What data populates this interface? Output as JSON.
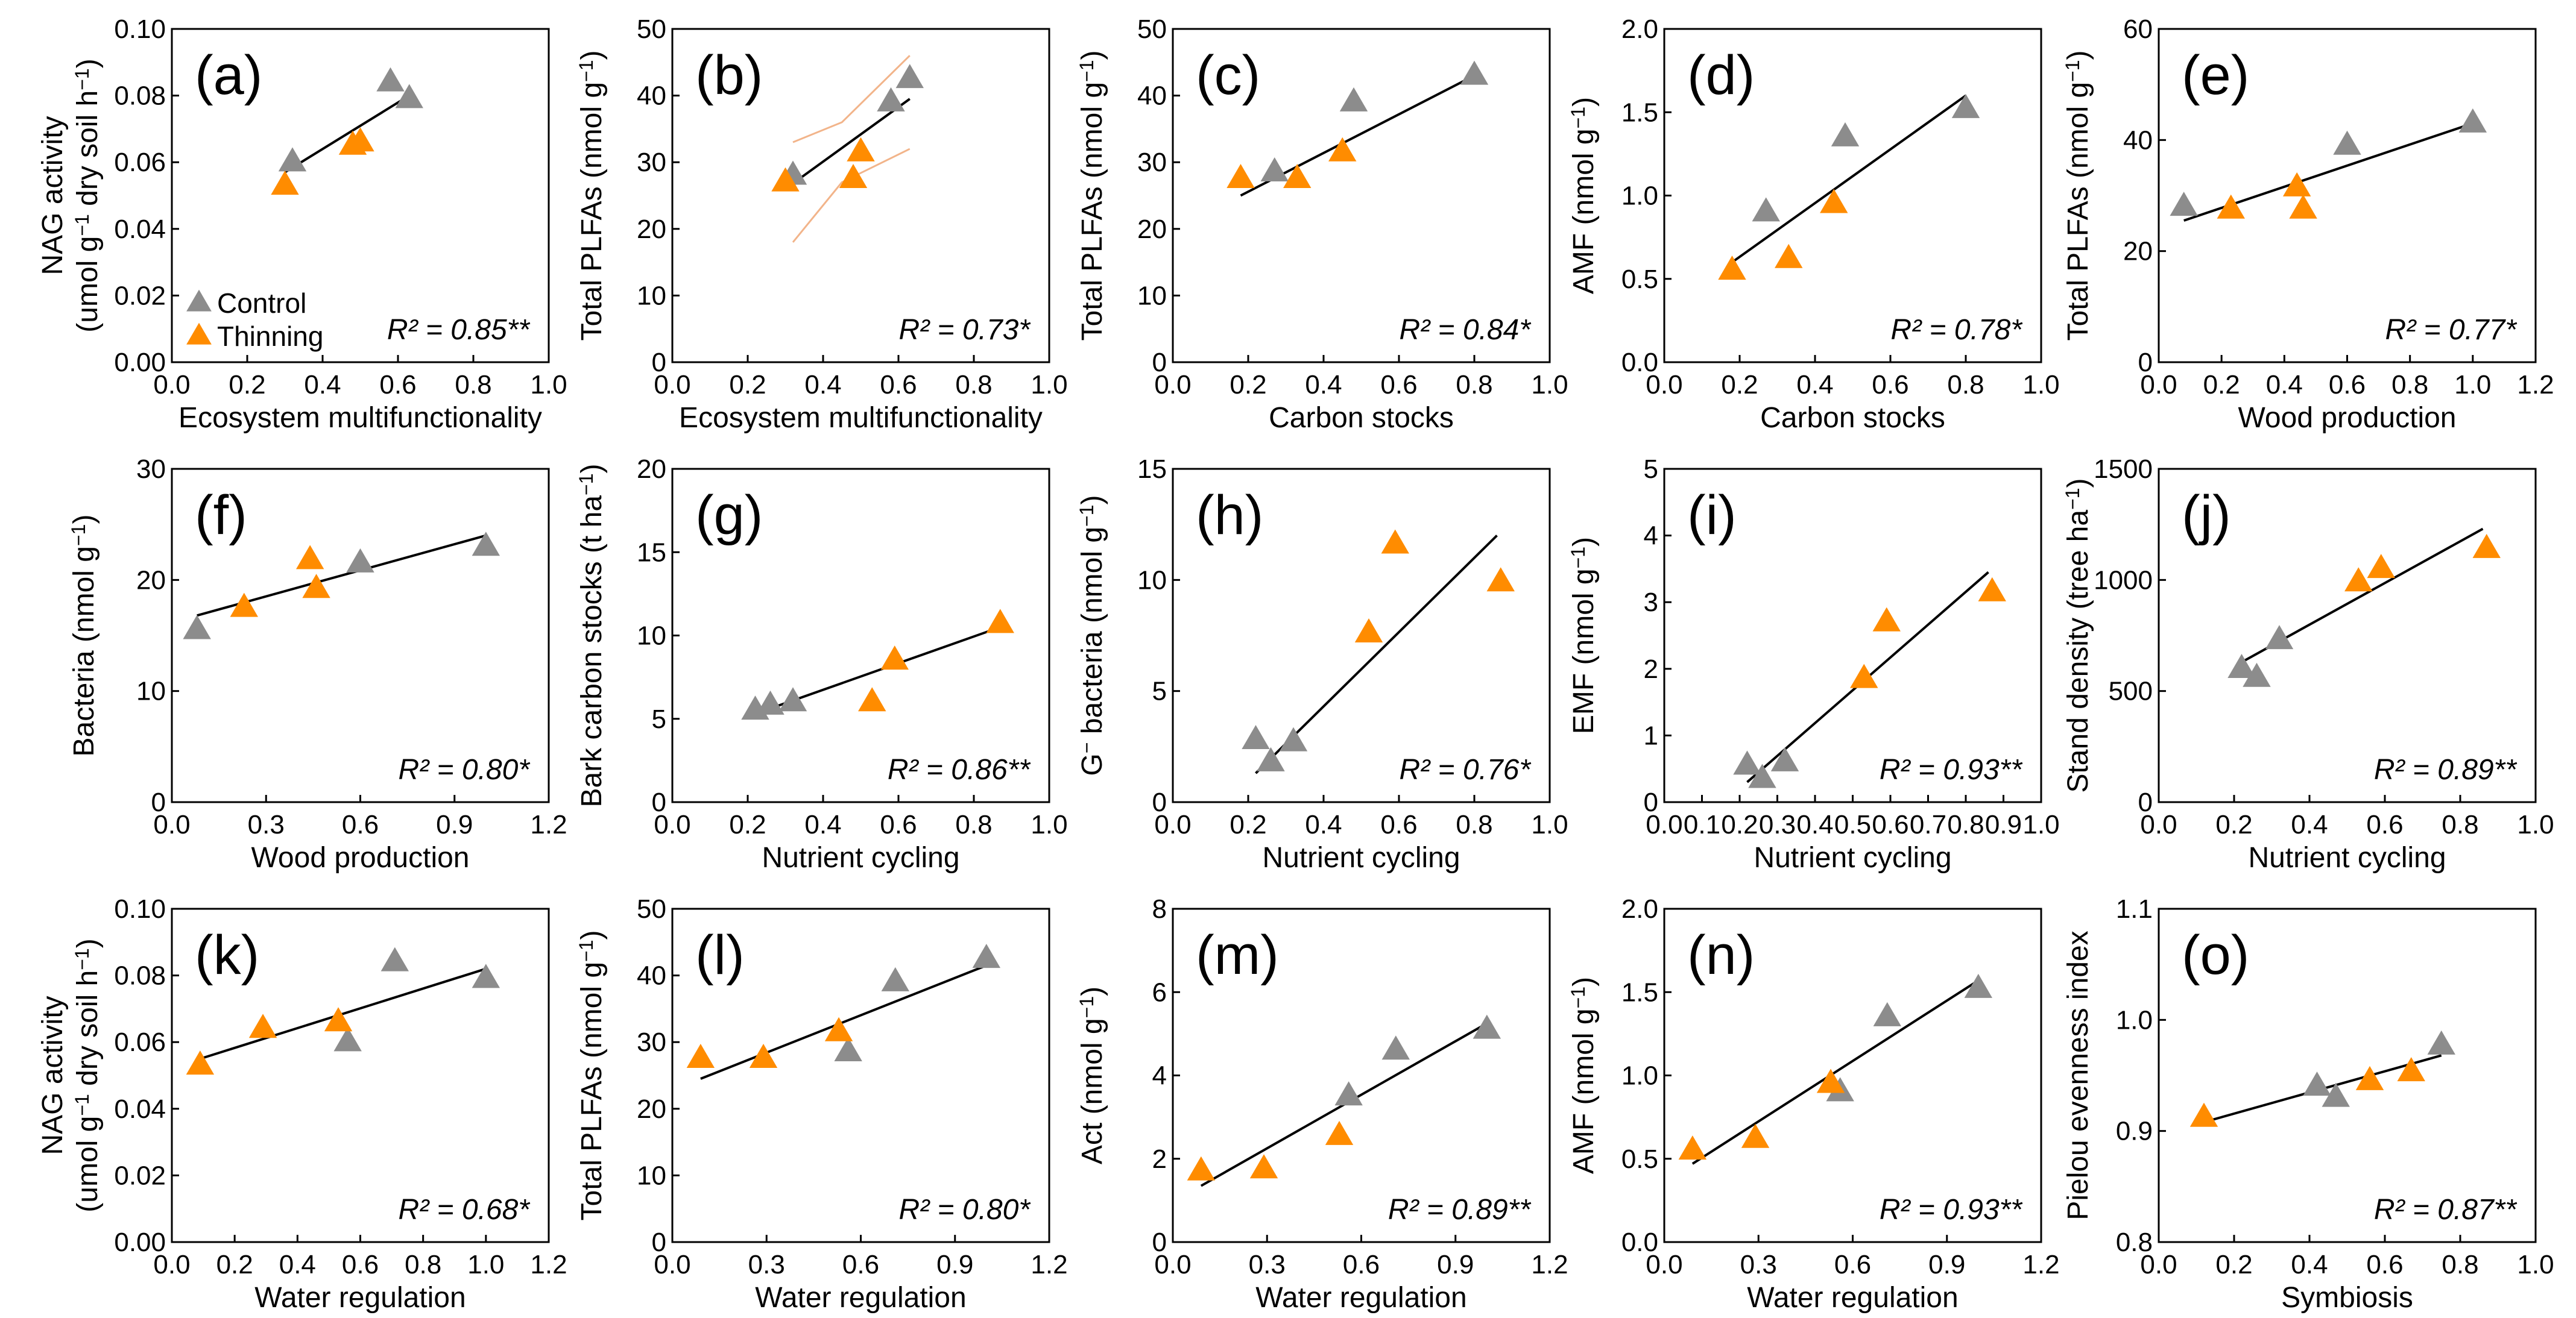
{
  "colors": {
    "control": "#8c8c8c",
    "thinning": "#ff8c00",
    "line": "#000000",
    "ci": "#f2b48a"
  },
  "legend": {
    "control": "Control",
    "thinning": "Thinning"
  },
  "chart_data": [
    {
      "type": "scatter",
      "panel": "(a)",
      "xlabel": "Ecosystem multifunctionality",
      "ylabel": "NAG activity|(umol g-1 dry soil h-1)",
      "xlim": [
        0,
        1.0
      ],
      "ylim": [
        0,
        0.1
      ],
      "xticks": [
        "0.0",
        "0.2",
        "0.4",
        "0.6",
        "0.8",
        "1.0"
      ],
      "yticks": [
        "0.00",
        "0.02",
        "0.04",
        "0.06",
        "0.08",
        "0.10"
      ],
      "series": [
        {
          "name": "Control",
          "x": [
            0.32,
            0.58,
            0.63
          ],
          "y": [
            0.06,
            0.084,
            0.079
          ]
        },
        {
          "name": "Thinning",
          "x": [
            0.3,
            0.48,
            0.5
          ],
          "y": [
            0.053,
            0.065,
            0.066
          ]
        }
      ],
      "fit": [
        [
          0.3,
          0.057
        ],
        [
          0.63,
          0.08
        ]
      ],
      "r2": "R² = 0.85**",
      "legend_shown": true
    },
    {
      "type": "scatter",
      "panel": "(b)",
      "xlabel": "Ecosystem multifunctionality",
      "ylabel": "Total PLFAs (nmol g-1)",
      "xlim": [
        0,
        1.0
      ],
      "ylim": [
        0,
        50
      ],
      "xticks": [
        "0.0",
        "0.2",
        "0.4",
        "0.6",
        "0.8",
        "1.0"
      ],
      "yticks": [
        "0",
        "10",
        "20",
        "30",
        "40",
        "50"
      ],
      "series": [
        {
          "name": "Control",
          "x": [
            0.32,
            0.58,
            0.63
          ],
          "y": [
            28,
            39,
            42.5
          ]
        },
        {
          "name": "Thinning",
          "x": [
            0.3,
            0.48,
            0.5
          ],
          "y": [
            27,
            27.5,
            31.5
          ]
        }
      ],
      "fit": [
        [
          0.3,
          26
        ],
        [
          0.63,
          39.5
        ]
      ],
      "ci_upper": [
        [
          0.32,
          33
        ],
        [
          0.45,
          36
        ],
        [
          0.63,
          46
        ]
      ],
      "ci_lower": [
        [
          0.32,
          18
        ],
        [
          0.45,
          27
        ],
        [
          0.63,
          32
        ]
      ],
      "r2": "R² = 0.73*"
    },
    {
      "type": "scatter",
      "panel": "(c)",
      "xlabel": "Carbon stocks",
      "ylabel": "Total PLFAs (nmol g-1)",
      "xlim": [
        0,
        1.0
      ],
      "ylim": [
        0,
        50
      ],
      "xticks": [
        "0.0",
        "0.2",
        "0.4",
        "0.6",
        "0.8",
        "1.0"
      ],
      "yticks": [
        "0",
        "10",
        "20",
        "30",
        "40",
        "50"
      ],
      "series": [
        {
          "name": "Control",
          "x": [
            0.27,
            0.48,
            0.8
          ],
          "y": [
            28.5,
            39,
            43
          ]
        },
        {
          "name": "Thinning",
          "x": [
            0.18,
            0.33,
            0.45
          ],
          "y": [
            27.5,
            27.5,
            31.5
          ]
        }
      ],
      "fit": [
        [
          0.18,
          25
        ],
        [
          0.8,
          43
        ]
      ],
      "r2": "R² = 0.84*"
    },
    {
      "type": "scatter",
      "panel": "(d)",
      "xlabel": "Carbon stocks",
      "ylabel": "AMF (nmol g-1)",
      "xlim": [
        0,
        1.0
      ],
      "ylim": [
        0,
        2.0
      ],
      "xticks": [
        "0.0",
        "0.2",
        "0.4",
        "0.6",
        "0.8",
        "1.0"
      ],
      "yticks": [
        "0.0",
        "0.5",
        "1.0",
        "1.5",
        "2.0"
      ],
      "series": [
        {
          "name": "Control",
          "x": [
            0.27,
            0.48,
            0.8
          ],
          "y": [
            0.9,
            1.35,
            1.52
          ]
        },
        {
          "name": "Thinning",
          "x": [
            0.18,
            0.33,
            0.45
          ],
          "y": [
            0.55,
            0.62,
            0.95
          ]
        }
      ],
      "fit": [
        [
          0.18,
          0.6
        ],
        [
          0.8,
          1.6
        ]
      ],
      "r2": "R² = 0.78*"
    },
    {
      "type": "scatter",
      "panel": "(e)",
      "xlabel": "Wood production",
      "ylabel": "Total PLFAs (nmol g-1)",
      "xlim": [
        0,
        1.2
      ],
      "ylim": [
        0,
        60
      ],
      "xticks": [
        "0.0",
        "0.2",
        "0.4",
        "0.6",
        "0.8",
        "1.0",
        "1.2"
      ],
      "yticks": [
        "0",
        "20",
        "40",
        "60"
      ],
      "series": [
        {
          "name": "Control",
          "x": [
            0.08,
            0.6,
            1.0
          ],
          "y": [
            28,
            39,
            43
          ]
        },
        {
          "name": "Thinning",
          "x": [
            0.23,
            0.44,
            0.46
          ],
          "y": [
            27.5,
            31.5,
            27.5
          ]
        }
      ],
      "fit": [
        [
          0.08,
          25.5
        ],
        [
          1.0,
          43
        ]
      ],
      "r2": "R² = 0.77*"
    },
    {
      "type": "scatter",
      "panel": "(f)",
      "xlabel": "Wood production",
      "ylabel": "Bacteria (nmol g-1)",
      "xlim": [
        0,
        1.2
      ],
      "ylim": [
        0,
        30
      ],
      "xticks": [
        "0.0",
        "0.3",
        "0.6",
        "0.9",
        "1.2"
      ],
      "yticks": [
        "0",
        "10",
        "20",
        "30"
      ],
      "series": [
        {
          "name": "Control",
          "x": [
            0.08,
            0.6,
            1.0
          ],
          "y": [
            15.5,
            21.5,
            23
          ]
        },
        {
          "name": "Thinning",
          "x": [
            0.23,
            0.44,
            0.46
          ],
          "y": [
            17.5,
            21.8,
            19.2
          ]
        }
      ],
      "fit": [
        [
          0.08,
          16.8
        ],
        [
          1.0,
          24
        ]
      ],
      "r2": "R² = 0.80*"
    },
    {
      "type": "scatter",
      "panel": "(g)",
      "xlabel": "Nutrient cycling",
      "ylabel": "Bark carbon stocks (t ha-1)",
      "xlim": [
        0,
        1.0
      ],
      "ylim": [
        0,
        20
      ],
      "xticks": [
        "0.0",
        "0.2",
        "0.4",
        "0.6",
        "0.8",
        "1.0"
      ],
      "yticks": [
        "0",
        "5",
        "10",
        "15",
        "20"
      ],
      "series": [
        {
          "name": "Control",
          "x": [
            0.22,
            0.26,
            0.32
          ],
          "y": [
            5.5,
            5.8,
            6.0
          ]
        },
        {
          "name": "Thinning",
          "x": [
            0.53,
            0.59,
            0.87
          ],
          "y": [
            6.0,
            8.5,
            10.7
          ]
        }
      ],
      "fit": [
        [
          0.22,
          5.3
        ],
        [
          0.87,
          10.5
        ]
      ],
      "r2": "R² = 0.86**"
    },
    {
      "type": "scatter",
      "panel": "(h)",
      "xlabel": "Nutrient cycling",
      "ylabel": "G- bacteria (nmol g-1)",
      "xlim": [
        0,
        1.0
      ],
      "ylim": [
        0,
        15
      ],
      "xticks": [
        "0.0",
        "0.2",
        "0.4",
        "0.6",
        "0.8",
        "1.0"
      ],
      "yticks": [
        "0",
        "5",
        "10",
        "15"
      ],
      "series": [
        {
          "name": "Control",
          "x": [
            0.22,
            0.26,
            0.32
          ],
          "y": [
            2.8,
            1.8,
            2.7
          ]
        },
        {
          "name": "Thinning",
          "x": [
            0.52,
            0.59,
            0.87
          ],
          "y": [
            7.6,
            11.6,
            9.9
          ]
        }
      ],
      "fit": [
        [
          0.22,
          1.3
        ],
        [
          0.86,
          12
        ]
      ],
      "r2": "R² = 0.76*"
    },
    {
      "type": "scatter",
      "panel": "(i)",
      "xlabel": "Nutrient cycling",
      "ylabel": "EMF (nmol g-1)",
      "xlim": [
        0,
        1.0
      ],
      "ylim": [
        0,
        5
      ],
      "xticks": [
        "0.0",
        "0.1",
        "0.2",
        "0.3",
        "0.4",
        "0.5",
        "0.6",
        "0.7",
        "0.8",
        "0.9",
        "1.0"
      ],
      "yticks": [
        "0",
        "1",
        "2",
        "3",
        "4",
        "5"
      ],
      "series": [
        {
          "name": "Control",
          "x": [
            0.22,
            0.26,
            0.32
          ],
          "y": [
            0.55,
            0.35,
            0.6
          ]
        },
        {
          "name": "Thinning",
          "x": [
            0.53,
            0.59,
            0.87
          ],
          "y": [
            1.85,
            2.7,
            3.15
          ]
        }
      ],
      "fit": [
        [
          0.22,
          0.3
        ],
        [
          0.86,
          3.45
        ]
      ],
      "r2": "R² = 0.93**"
    },
    {
      "type": "scatter",
      "panel": "(j)",
      "xlabel": "Nutrient cycling",
      "ylabel": "Stand density (tree ha-1)",
      "xlim": [
        0,
        1.0
      ],
      "ylim": [
        0,
        1500
      ],
      "xticks": [
        "0.0",
        "0.2",
        "0.4",
        "0.6",
        "0.8",
        "1.0"
      ],
      "yticks": [
        "0",
        "500",
        "1000",
        "1500"
      ],
      "series": [
        {
          "name": "Control",
          "x": [
            0.22,
            0.26,
            0.32
          ],
          "y": [
            600,
            560,
            730
          ]
        },
        {
          "name": "Thinning",
          "x": [
            0.53,
            0.59,
            0.87
          ],
          "y": [
            990,
            1050,
            1140
          ]
        }
      ],
      "fit": [
        [
          0.22,
          630
        ],
        [
          0.86,
          1230
        ]
      ],
      "r2": "R² = 0.89**"
    },
    {
      "type": "scatter",
      "panel": "(k)",
      "xlabel": "Water regulation",
      "ylabel": "NAG activity|(umol g-1 dry soil h-1)",
      "xlim": [
        0,
        1.2
      ],
      "ylim": [
        0,
        0.1
      ],
      "xticks": [
        "0.0",
        "0.2",
        "0.4",
        "0.6",
        "0.8",
        "1.0",
        "1.2"
      ],
      "yticks": [
        "0.00",
        "0.02",
        "0.04",
        "0.06",
        "0.08",
        "0.10"
      ],
      "series": [
        {
          "name": "Control",
          "x": [
            0.56,
            0.71,
            1.0
          ],
          "y": [
            0.06,
            0.084,
            0.079
          ]
        },
        {
          "name": "Thinning",
          "x": [
            0.09,
            0.29,
            0.53
          ],
          "y": [
            0.053,
            0.064,
            0.066
          ]
        }
      ],
      "fit": [
        [
          0.09,
          0.055
        ],
        [
          1.0,
          0.082
        ]
      ],
      "r2": "R² = 0.68*"
    },
    {
      "type": "scatter",
      "panel": "(l)",
      "xlabel": "Water regulation",
      "ylabel": "Total PLFAs (nmol g-1)",
      "xlim": [
        0,
        1.2
      ],
      "ylim": [
        0,
        50
      ],
      "xticks": [
        "0.0",
        "0.3",
        "0.6",
        "0.9",
        "1.2"
      ],
      "yticks": [
        "0",
        "10",
        "20",
        "30",
        "40",
        "50"
      ],
      "series": [
        {
          "name": "Control",
          "x": [
            0.56,
            0.71,
            1.0
          ],
          "y": [
            28.5,
            39,
            42.5
          ]
        },
        {
          "name": "Thinning",
          "x": [
            0.09,
            0.29,
            0.53
          ],
          "y": [
            27.5,
            27.5,
            31.5
          ]
        }
      ],
      "fit": [
        [
          0.09,
          24.5
        ],
        [
          1.0,
          41.5
        ]
      ],
      "r2": "R² = 0.80*"
    },
    {
      "type": "scatter",
      "panel": "(m)",
      "xlabel": "Water regulation",
      "ylabel": "Act (nmol g-1)",
      "xlim": [
        0,
        1.2
      ],
      "ylim": [
        0,
        8
      ],
      "xticks": [
        "0.0",
        "0.3",
        "0.6",
        "0.9",
        "1.2"
      ],
      "yticks": [
        "0",
        "2",
        "4",
        "6",
        "8"
      ],
      "series": [
        {
          "name": "Control",
          "x": [
            0.56,
            0.71,
            1.0
          ],
          "y": [
            3.5,
            4.6,
            5.1
          ]
        },
        {
          "name": "Thinning",
          "x": [
            0.09,
            0.29,
            0.53
          ],
          "y": [
            1.7,
            1.75,
            2.55
          ]
        }
      ],
      "fit": [
        [
          0.09,
          1.35
        ],
        [
          1.0,
          5.25
        ]
      ],
      "r2": "R² = 0.89**"
    },
    {
      "type": "scatter",
      "panel": "(n)",
      "xlabel": "Water regulation",
      "ylabel": "AMF (nmol g-1)",
      "xlim": [
        0,
        1.2
      ],
      "ylim": [
        0,
        2.0
      ],
      "xticks": [
        "0.0",
        "0.3",
        "0.6",
        "0.9",
        "1.2"
      ],
      "yticks": [
        "0.0",
        "0.5",
        "1.0",
        "1.5",
        "2.0"
      ],
      "series": [
        {
          "name": "Control",
          "x": [
            0.56,
            0.71,
            1.0
          ],
          "y": [
            0.9,
            1.35,
            1.52
          ]
        },
        {
          "name": "Thinning",
          "x": [
            0.09,
            0.29,
            0.53
          ],
          "y": [
            0.55,
            0.62,
            0.95
          ]
        }
      ],
      "fit": [
        [
          0.09,
          0.47
        ],
        [
          1.0,
          1.57
        ]
      ],
      "r2": "R² = 0.93**"
    },
    {
      "type": "scatter",
      "panel": "(o)",
      "xlabel": "Symbiosis",
      "ylabel": "Pielou evenness index",
      "xlim": [
        0,
        1.0
      ],
      "ylim": [
        0.8,
        1.1
      ],
      "xticks": [
        "0.0",
        "0.2",
        "0.4",
        "0.6",
        "0.8",
        "1.0"
      ],
      "yticks": [
        "0.8",
        "0.9",
        "1.0",
        "1.1"
      ],
      "series": [
        {
          "name": "Control",
          "x": [
            0.42,
            0.47,
            0.75
          ],
          "y": [
            0.94,
            0.93,
            0.977
          ]
        },
        {
          "name": "Thinning",
          "x": [
            0.12,
            0.56,
            0.67
          ],
          "y": [
            0.912,
            0.945,
            0.953
          ]
        }
      ],
      "fit": [
        [
          0.12,
          0.908
        ],
        [
          0.75,
          0.968
        ]
      ],
      "r2": "R² = 0.87**"
    }
  ]
}
